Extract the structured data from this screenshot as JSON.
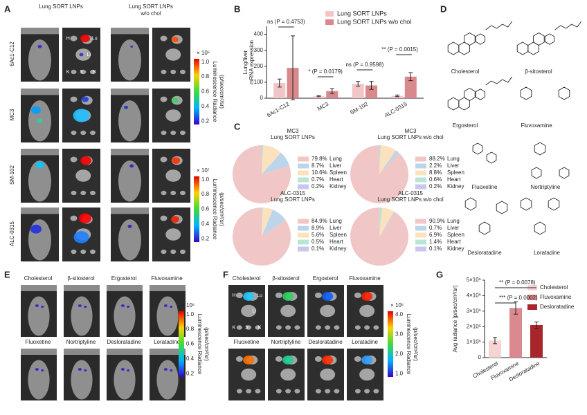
{
  "panel_labels": [
    "A",
    "B",
    "C",
    "D",
    "E",
    "F",
    "G"
  ],
  "panel_a": {
    "column_1": "Lung SORT LNPs",
    "column_2": [
      "Lung SORT LNPs",
      "w/o chol"
    ],
    "rows": [
      "6Ac1-C12",
      "MC3",
      "SM-102",
      "ALC-0315"
    ],
    "organs": [
      "H",
      "Lu",
      "Li",
      "K",
      "S",
      "K"
    ],
    "colorbars": [
      {
        "exponent": "× 10⁶",
        "ticks": [
          "1.0",
          "0.8",
          "0.6",
          "0.4",
          "0.2"
        ],
        "label": "Luminescence Radiance",
        "unit": "(p/sec/cm²/sr)"
      },
      {
        "exponent": "× 10⁷",
        "ticks": [
          "1.0",
          "0.8",
          "0.6",
          "0.4",
          "0.2"
        ],
        "label": "Luminescence Radiance",
        "unit": "(p/sec/cm²/sr)"
      }
    ]
  },
  "panel_d": {
    "molecules": [
      "Cholesterol",
      "β-sitosterol",
      "Ergosterol",
      "Fluvoxamine",
      "Fluoxetine",
      "Nortriptyline",
      "Desloratadine",
      "Loratadine"
    ]
  },
  "panel_e": {
    "labels": [
      "Cholesterol",
      "β-sitosterol",
      "Ergosterol",
      "Fluvoxamine",
      "Fluoxetine",
      "Nortriptyline",
      "Desloratadine",
      "Loratadine"
    ],
    "colorbar": {
      "exponent": "× 10⁶",
      "ticks": [
        "1.0",
        "0.8",
        "0.6",
        "0.4",
        "0.2"
      ],
      "label": "Luminescence Radiance",
      "unit": "(p/sec/cm²/sr)"
    }
  },
  "panel_f": {
    "labels": [
      "Cholesterol",
      "β-sitosterol",
      "Ergosterol",
      "Fluvoxamine",
      "Fluoxetine",
      "Nortriptyline",
      "Desloratadine",
      "Loratadine"
    ],
    "organs": [
      "H",
      "Lu",
      "Li",
      "K",
      "S",
      "K"
    ],
    "colorbar": {
      "exponent": "× 10⁶",
      "ticks": [
        "4.0",
        "3.0",
        "2.0",
        "1.0"
      ],
      "label": "Luminescence Radiance",
      "unit": "(p/sec/cm²/sr)"
    }
  },
  "chart_data": [
    {
      "type": "bar",
      "ylabel": [
        "Lung/liver",
        "mRNA expression"
      ],
      "categories": [
        "6Ac1-C12",
        "MC3",
        "SM-102",
        "ALC-0315"
      ],
      "series": [
        {
          "name": "Lung SORT LNPs",
          "color": "#f2c6c6",
          "values": [
            95,
            12,
            90,
            15
          ],
          "errors": [
            25,
            3,
            15,
            5
          ]
        },
        {
          "name": "Lung SORT LNPs w/o chol",
          "color": "#d9888b",
          "values": [
            190,
            45,
            80,
            135
          ],
          "errors": [
            200,
            15,
            25,
            25
          ]
        }
      ],
      "ylim": [
        0,
        450
      ],
      "yticks": [
        0,
        100,
        200,
        300,
        400
      ],
      "annotations": [
        "ns (P = 0.4753)",
        "* (P = 0.0179)",
        "ns (P = 0.9598)",
        "** (P = 0.0015)"
      ]
    },
    {
      "type": "pie",
      "title": "MC3",
      "subtitle": "Lung SORT LNPs",
      "categories": [
        "Lung",
        "Liver",
        "Spleen",
        "Heart",
        "Kidney"
      ],
      "values": [
        79.8,
        8.7,
        10.6,
        0.7,
        0.2
      ],
      "value_labels": [
        "79.8%",
        "8.7%",
        "10.6%",
        "0.7%",
        "0.2%"
      ],
      "colors": [
        "#f0c6c6",
        "#bcd5ea",
        "#fbe2bd",
        "#b9e5d4",
        "#cbc6ee"
      ]
    },
    {
      "type": "pie",
      "title": "MC3",
      "subtitle": "Lung SORT LNPs w/o chol",
      "categories": [
        "Lung",
        "Liver",
        "Spleen",
        "Heart",
        "Kidney"
      ],
      "values": [
        88.2,
        2.2,
        8.8,
        0.6,
        0.2
      ],
      "value_labels": [
        "88.2%",
        "2.2%",
        "8.8%",
        "0.6%",
        "0.2%"
      ],
      "colors": [
        "#f0c6c6",
        "#bcd5ea",
        "#fbe2bd",
        "#b9e5d4",
        "#cbc6ee"
      ]
    },
    {
      "type": "pie",
      "title": "ALC-0315",
      "subtitle": "Lung SORT LNPs",
      "categories": [
        "Lung",
        "Liver",
        "Spleen",
        "Heart",
        "Kidney"
      ],
      "values": [
        84.9,
        8.9,
        5.6,
        0.5,
        0.1
      ],
      "value_labels": [
        "84.9%",
        "8.9%",
        "5.6%",
        "0.5%",
        "0.1%"
      ],
      "colors": [
        "#f0c6c6",
        "#bcd5ea",
        "#fbe2bd",
        "#b9e5d4",
        "#cbc6ee"
      ]
    },
    {
      "type": "pie",
      "title": "ALC-0315",
      "subtitle": "Lung SORT LNPs w/o chol",
      "categories": [
        "Lung",
        "Liver",
        "Spleen",
        "Heart",
        "Kidney"
      ],
      "values": [
        90.9,
        0.7,
        6.9,
        1.4,
        0.1
      ],
      "value_labels": [
        "90.9%",
        "0.7%",
        "6.9%",
        "1.4%",
        "0.1%"
      ],
      "colors": [
        "#f0c6c6",
        "#bcd5ea",
        "#fbe2bd",
        "#b9e5d4",
        "#cbc6ee"
      ]
    },
    {
      "type": "bar",
      "ylabel": [
        "Avg radiance [p/sec/cm²/sr]"
      ],
      "categories": [
        "Cholesterol",
        "Fluvoxamine",
        "Desloratadine"
      ],
      "values": [
        1100000,
        3200000,
        2100000
      ],
      "errors": [
        200000,
        400000,
        200000
      ],
      "colors": [
        "#f6d4d4",
        "#d98a8f",
        "#a8262b"
      ],
      "ylim": [
        0,
        5000000
      ],
      "yticks": [
        0,
        {
          "value": 1000000,
          "label": "1×10⁶"
        },
        {
          "value": 2000000,
          "label": "2×10⁶"
        },
        {
          "value": 3000000,
          "label": "3×10⁶"
        },
        {
          "value": 4000000,
          "label": "4×10⁶"
        },
        {
          "value": 5000000,
          "label": "5×10⁶"
        }
      ],
      "annotations": [
        "** (P = 0.0078)",
        "*** (P = 0.0002)"
      ]
    }
  ]
}
